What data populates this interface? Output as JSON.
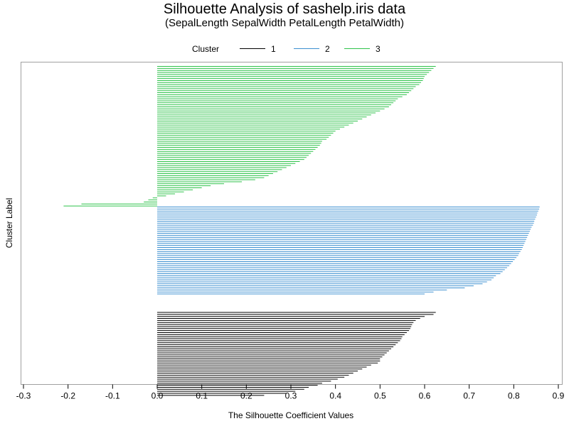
{
  "chart_data": {
    "type": "bar",
    "orientation": "horizontal",
    "title": "Silhouette Analysis of sashelp.iris data",
    "subtitle": "(SepalLength SepalWidth PetalLength PetalWidth)",
    "xlabel": "The Silhouette Coefficient Values",
    "ylabel": "Cluster Label",
    "xlim": [
      -0.3,
      0.9
    ],
    "xticks": [
      "-0.3",
      "-0.2",
      "-0.1",
      "0.0",
      "0.1",
      "0.2",
      "0.3",
      "0.4",
      "0.5",
      "0.6",
      "0.7",
      "0.8",
      "0.9"
    ],
    "grid": false,
    "legend": {
      "title": "Cluster",
      "position": "top",
      "entries": [
        "1",
        "2",
        "3"
      ]
    },
    "series": [
      {
        "name": "1",
        "color": "#000000",
        "note_order": "top to bottom within cluster",
        "values": [
          0.625,
          0.62,
          0.6,
          0.59,
          0.58,
          0.575,
          0.572,
          0.57,
          0.568,
          0.565,
          0.56,
          0.555,
          0.55,
          0.548,
          0.545,
          0.54,
          0.535,
          0.53,
          0.525,
          0.52,
          0.515,
          0.51,
          0.505,
          0.5,
          0.5,
          0.495,
          0.48,
          0.47,
          0.46,
          0.45,
          0.44,
          0.43,
          0.42,
          0.405,
          0.39,
          0.37,
          0.36,
          0.34,
          0.33,
          0.31,
          0.29,
          0.24
        ]
      },
      {
        "name": "2",
        "color": "#3b8fd0",
        "values": [
          0.858,
          0.857,
          0.855,
          0.853,
          0.852,
          0.85,
          0.848,
          0.846,
          0.845,
          0.843,
          0.84,
          0.838,
          0.836,
          0.834,
          0.832,
          0.83,
          0.828,
          0.826,
          0.824,
          0.822,
          0.82,
          0.818,
          0.815,
          0.812,
          0.81,
          0.806,
          0.802,
          0.798,
          0.794,
          0.79,
          0.785,
          0.78,
          0.775,
          0.77,
          0.76,
          0.755,
          0.75,
          0.74,
          0.73,
          0.71,
          0.69,
          0.65,
          0.62,
          0.6
        ]
      },
      {
        "name": "3",
        "color": "#2ec24a",
        "values": [
          0.625,
          0.62,
          0.615,
          0.61,
          0.605,
          0.6,
          0.598,
          0.596,
          0.592,
          0.588,
          0.58,
          0.575,
          0.57,
          0.565,
          0.56,
          0.55,
          0.54,
          0.535,
          0.53,
          0.525,
          0.52,
          0.51,
          0.5,
          0.49,
          0.48,
          0.47,
          0.46,
          0.45,
          0.44,
          0.43,
          0.42,
          0.41,
          0.4,
          0.395,
          0.39,
          0.385,
          0.38,
          0.37,
          0.368,
          0.365,
          0.36,
          0.355,
          0.35,
          0.345,
          0.34,
          0.335,
          0.33,
          0.32,
          0.31,
          0.3,
          0.29,
          0.28,
          0.27,
          0.26,
          0.25,
          0.24,
          0.22,
          0.19,
          0.15,
          0.12,
          0.1,
          0.08,
          0.06,
          0.04,
          0.02,
          -0.01,
          -0.02,
          -0.03,
          -0.17,
          -0.21
        ]
      }
    ]
  }
}
